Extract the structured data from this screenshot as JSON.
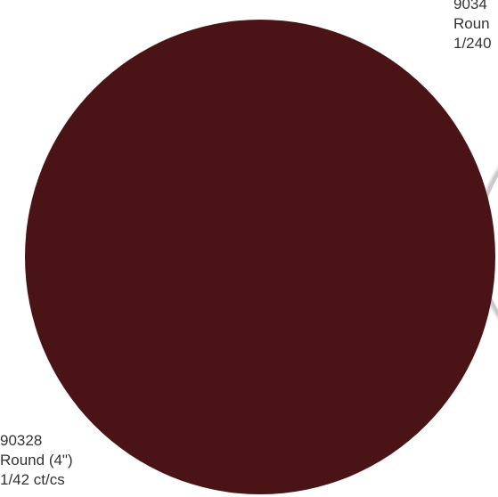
{
  "products": {
    "right_partial": {
      "code": "9034",
      "shape": "Roun",
      "pack": "1/240"
    },
    "bottom_left": {
      "code": "90328",
      "shape": "Round (4\")",
      "pack": "1/42 ct/cs"
    }
  },
  "colors": {
    "disc_fill": "#4a1416",
    "background": "#ffffff",
    "label_text": "#333333"
  }
}
